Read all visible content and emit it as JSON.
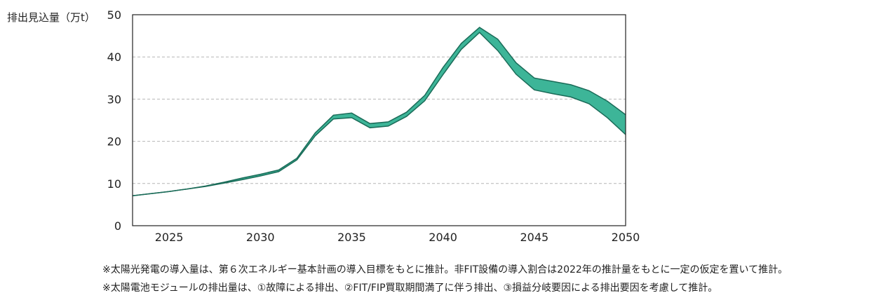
{
  "chart_data": {
    "type": "area",
    "ylabel": "排出見込量（万t）",
    "xlim": [
      2023,
      2050
    ],
    "ylim": [
      0,
      50
    ],
    "xticks": [
      2025,
      2030,
      2035,
      2040,
      2045,
      2050
    ],
    "yticks": [
      0,
      10,
      20,
      30,
      40,
      50
    ],
    "grid": "horizontal dashed",
    "fill_color": "#3db598",
    "line_color": "#1a6b58",
    "x": [
      2023,
      2024,
      2025,
      2026,
      2027,
      2028,
      2029,
      2030,
      2031,
      2032,
      2033,
      2034,
      2035,
      2036,
      2037,
      2038,
      2039,
      2040,
      2041,
      2042,
      2043,
      2044,
      2045,
      2046,
      2047,
      2048,
      2049,
      2050
    ],
    "series": [
      {
        "values": [
          7.1,
          7.6,
          8.1,
          8.7,
          9.4,
          10.3,
          11.3,
          12.2,
          13.2,
          16.0,
          22.0,
          26.2,
          26.7,
          24.2,
          24.6,
          26.9,
          30.9,
          37.5,
          43.2,
          47.0,
          44.2,
          38.6,
          35.0,
          34.2,
          33.4,
          32.0,
          29.5,
          26.3
        ]
      },
      {
        "values": [
          7.1,
          7.6,
          8.1,
          8.7,
          9.3,
          10.1,
          10.9,
          11.8,
          12.8,
          15.6,
          21.3,
          25.3,
          25.6,
          23.2,
          23.6,
          25.9,
          29.6,
          35.8,
          41.8,
          45.8,
          41.5,
          35.9,
          32.2,
          31.3,
          30.5,
          28.9,
          25.6,
          21.6
        ]
      }
    ]
  },
  "notes": [
    "※太陽光発電の導入量は、第６次エネルギー基本計画の導入目標をもとに推計。非FIT設備の導入割合は2022年の推計量をもとに一定の仮定を置いて推計。",
    "※太陽電池モジュールの排出量は、①故障による排出、②FIT/FIP買取期間満了に伴う排出、③損益分岐要因による排出要因を考慮して推計。"
  ]
}
